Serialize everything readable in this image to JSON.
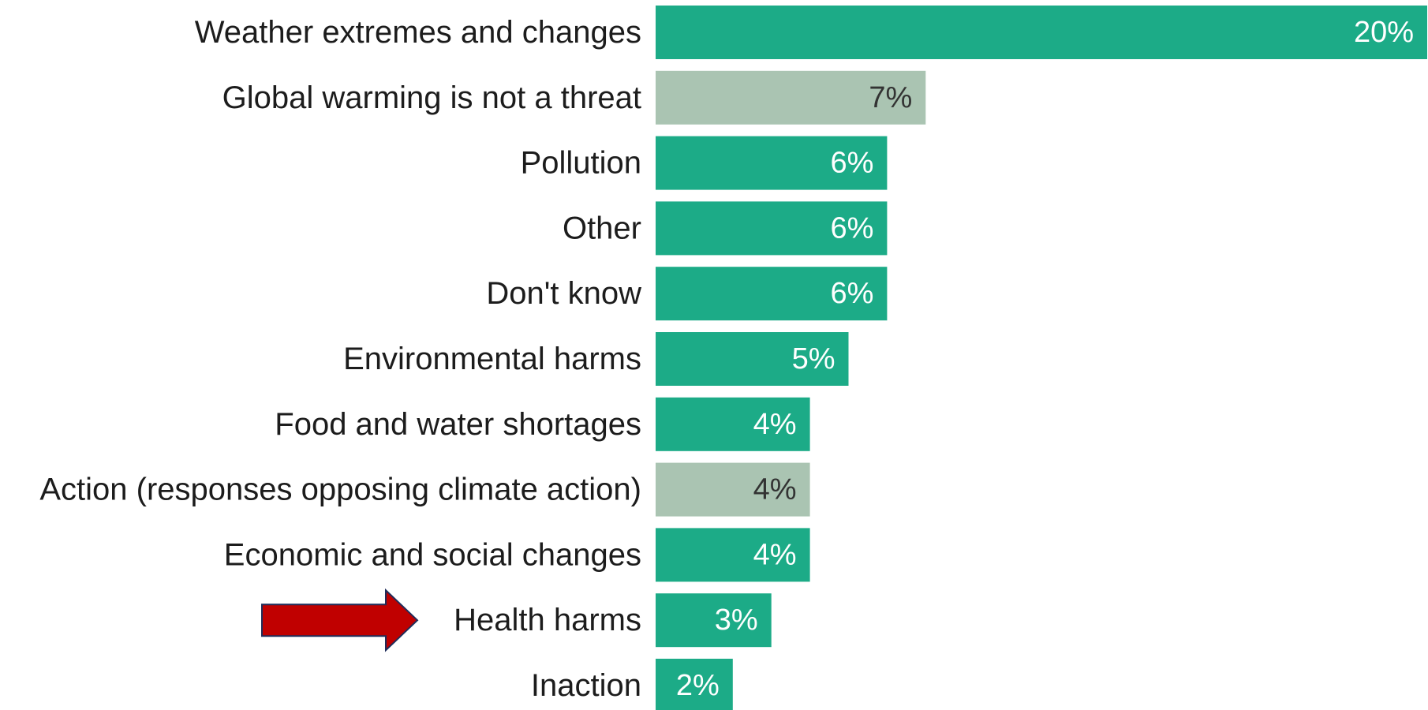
{
  "colors": {
    "primary_bar": "#1cab87",
    "muted_bar": "#aac4b2",
    "label_on_primary": "#ffffff",
    "label_on_muted": "#333333",
    "arrow_fill": "#c00000",
    "arrow_stroke": "#1f2d5a"
  },
  "annotation": {
    "icon": "right-arrow-icon",
    "target_category": "Health harms"
  },
  "chart_data": {
    "type": "bar",
    "orientation": "horizontal",
    "title": "",
    "xlabel": "",
    "ylabel": "",
    "xlim": [
      0,
      20
    ],
    "grid": false,
    "legend": "none",
    "categories": [
      "Weather extremes and changes",
      "Global warming is not a threat",
      "Pollution",
      "Other",
      "Don't know",
      "Environmental harms",
      "Food and water shortages",
      "Action (responses opposing climate action)",
      "Economic and social changes",
      "Health harms",
      "Inaction"
    ],
    "values": [
      20,
      7,
      6,
      6,
      6,
      5,
      4,
      4,
      4,
      3,
      2
    ],
    "value_labels": [
      "20%",
      "7%",
      "6%",
      "6%",
      "6%",
      "5%",
      "4%",
      "4%",
      "4%",
      "3%",
      "2%"
    ],
    "muted": [
      false,
      true,
      false,
      false,
      false,
      false,
      false,
      true,
      false,
      false,
      false
    ]
  }
}
